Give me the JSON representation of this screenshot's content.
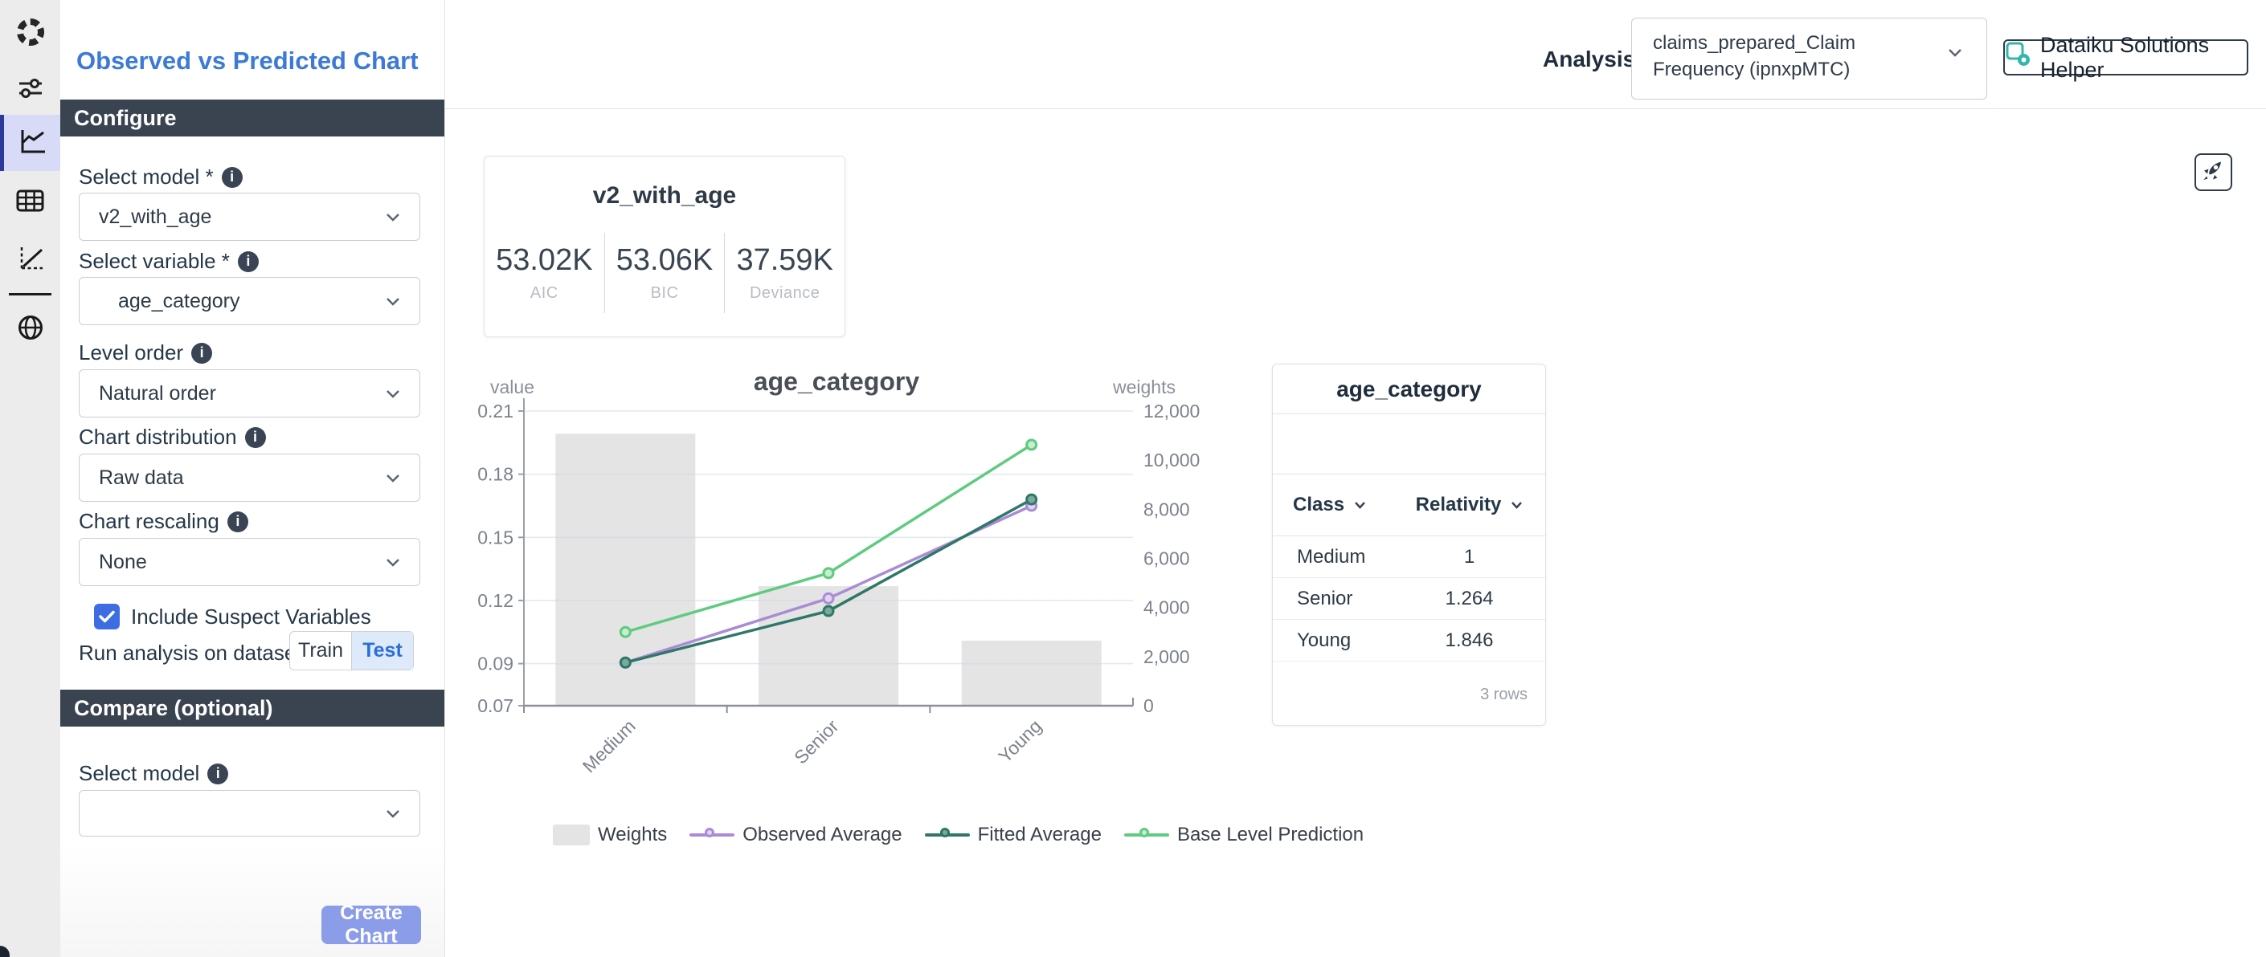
{
  "sidebar": {
    "icons": [
      {
        "name": "dataiku-logo"
      },
      {
        "name": "sliders"
      },
      {
        "name": "line-chart",
        "active": true
      },
      {
        "name": "table"
      },
      {
        "name": "scatter-axes"
      },
      {
        "name": "globe"
      }
    ]
  },
  "panel": {
    "title": "Observed vs Predicted Chart",
    "configure_header": "Configure",
    "fields": [
      {
        "label": "Select model *",
        "value": "v2_with_age"
      },
      {
        "label": "Select variable *",
        "value": "age_category"
      },
      {
        "label": "Level order",
        "value": "Natural order"
      },
      {
        "label": "Chart distribution",
        "value": "Raw data"
      },
      {
        "label": "Chart rescaling",
        "value": "None"
      }
    ],
    "checkbox": {
      "label": "Include Suspect Variables",
      "checked": true
    },
    "run_label": "Run analysis on dataset",
    "dataset_toggle": {
      "options": [
        "Train",
        "Test"
      ],
      "selected": "Test"
    },
    "compare_header": "Compare (optional)",
    "compare_field": {
      "label": "Select model",
      "value": ""
    },
    "create_button": "Create Chart"
  },
  "header": {
    "analysis_label": "Analysis:",
    "analysis_value": "claims_prepared_Claim Frequency (ipnxpMTC)",
    "helper_button": "Dataiku Solutions Helper"
  },
  "model_card": {
    "title": "v2_with_age",
    "stats": [
      {
        "value": "53.02K",
        "label": "AIC"
      },
      {
        "value": "53.06K",
        "label": "BIC"
      },
      {
        "value": "37.59K",
        "label": "Deviance"
      }
    ]
  },
  "chart_data": {
    "type": "bar-line-combo",
    "title": "age_category",
    "categories": [
      "Medium",
      "Senior",
      "Young"
    ],
    "left_axis": {
      "label": "value",
      "min": 0.07,
      "max": 0.21,
      "ticks": [
        0.21,
        0.18,
        0.15,
        0.12,
        0.09,
        0.07
      ]
    },
    "right_axis": {
      "label": "weights",
      "min": 0,
      "max": 12000,
      "ticks": [
        12000,
        10000,
        8000,
        6000,
        4000,
        2000,
        0
      ]
    },
    "grid": true,
    "legend_position": "bottom",
    "series": [
      {
        "name": "Weights",
        "type": "bar",
        "axis": "right",
        "color": "#e4e4e4",
        "values": [
          11080,
          4870,
          2650
        ]
      },
      {
        "name": "Observed Average",
        "type": "line",
        "axis": "left",
        "color": "#a98cd4",
        "marker_fill": "#e2d4f2",
        "values": [
          0.0905,
          0.121,
          0.165
        ]
      },
      {
        "name": "Fitted Average",
        "type": "line",
        "axis": "left",
        "color": "#2f7767",
        "marker_fill": "#7aa99e",
        "values": [
          0.0905,
          0.115,
          0.168
        ]
      },
      {
        "name": "Base Level Prediction",
        "type": "line",
        "axis": "left",
        "color": "#5ecb7e",
        "marker_fill": "#c6ecd1",
        "values": [
          0.105,
          0.133,
          0.194
        ]
      }
    ]
  },
  "relativity_table": {
    "title": "age_category",
    "columns": [
      "Class",
      "Relativity"
    ],
    "rows": [
      [
        "Medium",
        "1"
      ],
      [
        "Senior",
        "1.264"
      ],
      [
        "Young",
        "1.846"
      ]
    ],
    "footer": "3 rows"
  }
}
